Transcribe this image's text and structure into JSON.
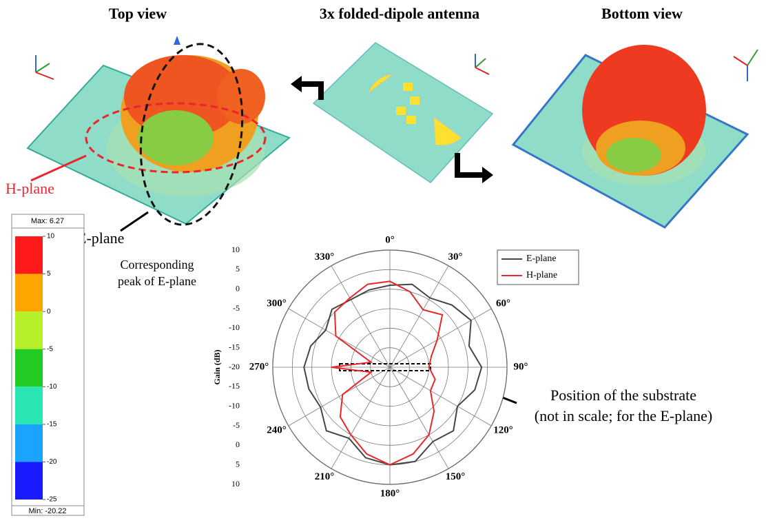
{
  "figure": {
    "top_view": "Top view",
    "title": "3x folded-dipole antenna",
    "bottom_view": "Bottom view",
    "h_plane_label": "H-plane",
    "e_plane_label": "E-plane",
    "peak_note": [
      "Corresponding",
      "peak of E-plane"
    ],
    "substrate_note": [
      "Position of the substrate",
      "(not in scale; for the E-plane)"
    ]
  },
  "colorbar": {
    "max_label": "Max: 6.27",
    "min_label": "Min: -20.22",
    "ticks": [
      10,
      5,
      0,
      -5,
      -10,
      -15,
      -20,
      -25
    ],
    "colors": [
      "#ff1a1a",
      "#ffa500",
      "#b5f02a",
      "#22cc22",
      "#2ae6b4",
      "#1aa3ff",
      "#1a1aff"
    ]
  },
  "chart_data": {
    "type": "polar",
    "ylabel": "Gain (dB)",
    "direction": "clockwise",
    "grid": true,
    "legend": "upper right",
    "x": [
      0,
      15,
      30,
      45,
      60,
      75,
      90,
      105,
      120,
      135,
      150,
      165,
      180,
      195,
      210,
      225,
      240,
      255,
      270,
      285,
      300,
      315,
      330,
      345
    ],
    "xticks": [
      {
        "value": 0,
        "label": "0°"
      },
      {
        "value": 30,
        "label": "30°"
      },
      {
        "value": 60,
        "label": "60°"
      },
      {
        "value": 90,
        "label": "90°"
      },
      {
        "value": 120,
        "label": "120°"
      },
      {
        "value": 150,
        "label": "150°"
      },
      {
        "value": 180,
        "label": "180°"
      },
      {
        "value": 210,
        "label": "210°"
      },
      {
        "value": 240,
        "label": "240°"
      },
      {
        "value": 270,
        "label": "270°"
      },
      {
        "value": 300,
        "label": "300°"
      },
      {
        "value": 330,
        "label": "330°"
      }
    ],
    "ylim": [
      -20,
      10
    ],
    "yticks": [
      -20,
      -15,
      -10,
      -5,
      0,
      5,
      10
    ],
    "series": [
      {
        "name": "E-plane",
        "color": "#444444",
        "values": [
          1,
          2,
          0.5,
          2.5,
          4,
          1,
          3.5,
          2.5,
          0,
          3,
          2,
          5,
          5,
          4,
          1,
          3,
          0.5,
          1.5,
          2,
          1,
          -1,
          1,
          0,
          0.5
        ]
      },
      {
        "name": "H-plane",
        "color": "#e8262b",
        "values": [
          2,
          0,
          -3,
          -1,
          -6,
          -9,
          -10,
          -8,
          -8,
          -4,
          0,
          3,
          5,
          3,
          0,
          -2,
          -6,
          -15,
          -5,
          -15,
          -4,
          0,
          0.5,
          2
        ]
      }
    ]
  }
}
